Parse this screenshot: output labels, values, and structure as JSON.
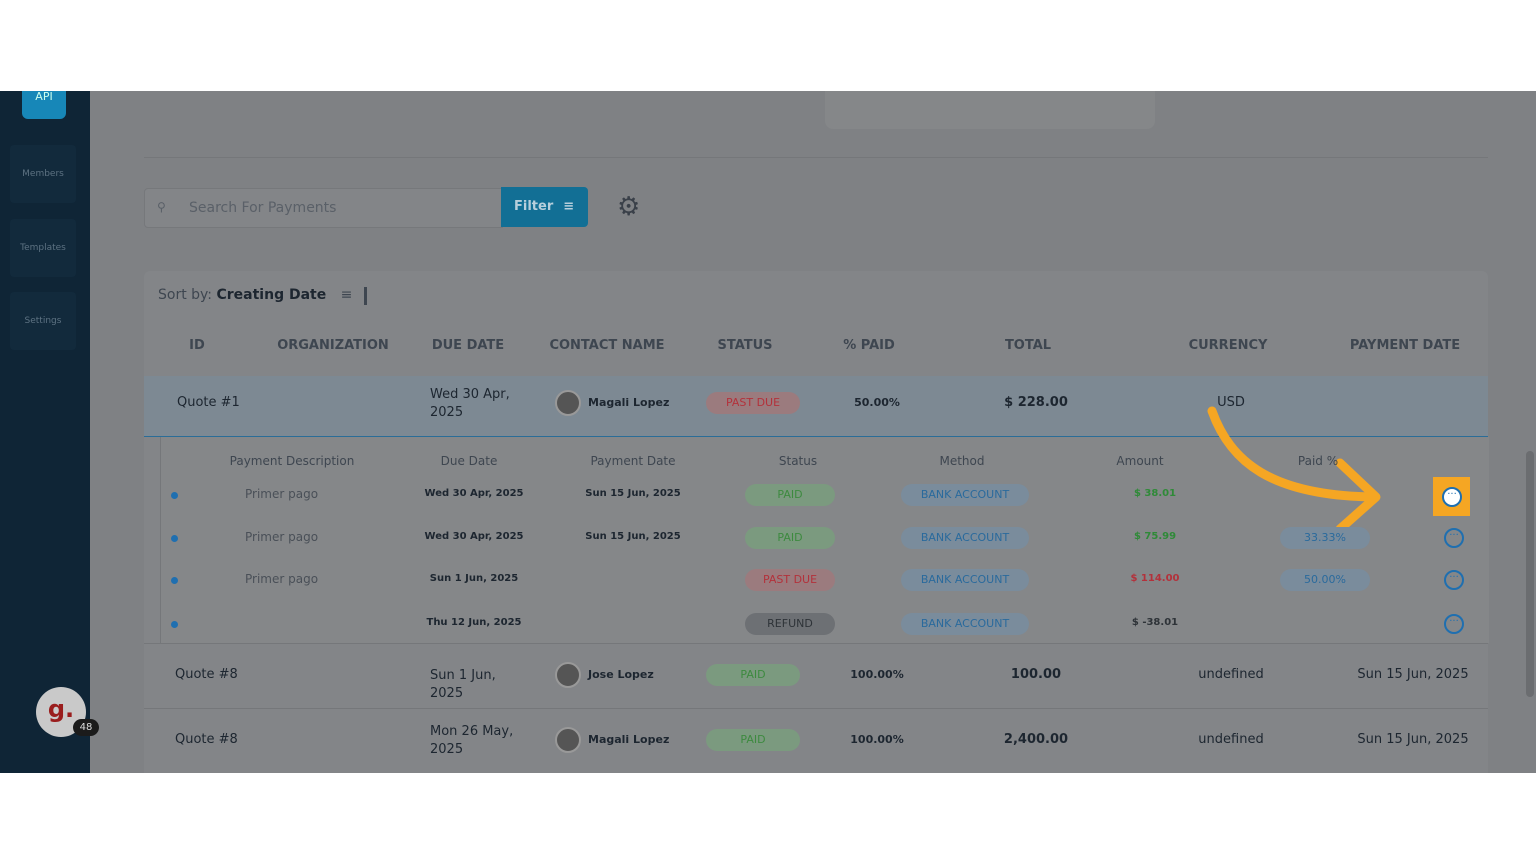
{
  "sidebar": {
    "logo": "API",
    "items": [
      "Members",
      "Templates",
      "Settings"
    ],
    "avatar": "g.",
    "badge": "48"
  },
  "toolbar": {
    "search_placeholder": "Search For Payments",
    "filter": "Filter"
  },
  "sort": {
    "label": "Sort by:",
    "value": "Creating Date"
  },
  "table": {
    "headers": [
      "ID",
      "ORGANIZATION",
      "DUE DATE",
      "CONTACT NAME",
      "STATUS",
      "% PAID",
      "TOTAL",
      "CURRENCY",
      "PAYMENT DATE"
    ],
    "rows": [
      {
        "id": "Quote #1",
        "due_date": "Wed 30 Apr, 2025",
        "contact": "Magali Lopez",
        "status": "PAST DUE",
        "status_color": "#b3313b",
        "status_bg": "#9b7b7e",
        "paid": "50.00%",
        "total": "$ 228.00",
        "currency": "USD"
      },
      {
        "id": "Quote #8",
        "due_date": "Sun 1 Jun, 2025",
        "contact": "Jose Lopez",
        "status": "PAID",
        "status_color": "#3d8a3f",
        "status_bg": "#7b9a7f",
        "paid": "100.00%",
        "total": "100.00",
        "currency": "undefined",
        "payment_date": "Sun 15 Jun, 2025"
      },
      {
        "id": "Quote #8",
        "due_date": "Mon 26 May, 2025",
        "contact": "Magali Lopez",
        "status": "PAID",
        "status_color": "#3d8a3f",
        "status_bg": "#7b9a7f",
        "paid": "100.00%",
        "total": "2,400.00",
        "currency": "undefined",
        "payment_date": "Sun 15 Jun, 2025"
      }
    ]
  },
  "payments": {
    "headers": [
      "Payment Description",
      "Due Date",
      "Payment Date",
      "Status",
      "Method",
      "Amount",
      "Paid %"
    ],
    "rows": [
      {
        "description": "Primer pago",
        "due_date": "Wed 30 Apr, 2025",
        "payment_date": "Sun 15 Jun, 2025",
        "status": "PAID",
        "status_color": "#3d8a3f",
        "status_bg": "#7b9a7f",
        "method": "BANK ACCOUNT",
        "amount": "$ 38.01",
        "amount_color": "#2f8a38"
      },
      {
        "description": "Primer pago",
        "due_date": "Wed 30 Apr, 2025",
        "payment_date": "Sun 15 Jun, 2025",
        "status": "PAID",
        "status_color": "#3d8a3f",
        "status_bg": "#7b9a7f",
        "method": "BANK ACCOUNT",
        "amount": "$ 75.99",
        "amount_color": "#2f8a38",
        "paid": "33.33%"
      },
      {
        "description": "Primer pago",
        "due_date": "Sun 1 Jun, 2025",
        "status": "PAST DUE",
        "status_color": "#b3313b",
        "status_bg": "#9b7b7e",
        "method": "BANK ACCOUNT",
        "amount": "$ 114.00",
        "amount_color": "#b3313b",
        "paid": "50.00%"
      },
      {
        "due_date": "Thu 12 Jun, 2025",
        "status": "REFUND",
        "status_color": "#2e3338",
        "status_bg": "#6d7074",
        "method": "BANK ACCOUNT",
        "amount": "$ -38.01",
        "amount_color": "#2e3338"
      }
    ]
  }
}
